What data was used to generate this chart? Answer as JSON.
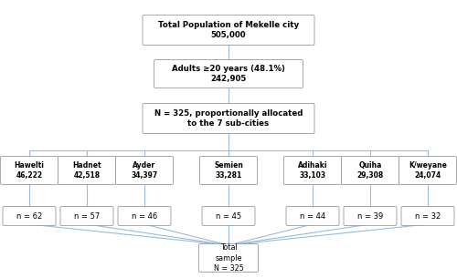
{
  "title_box": "Total Population of Mekelle city\n505,000",
  "adults_box": "Adults ≥20 years (48.1%)\n242,905",
  "allocation_box": "N = 325, proportionally allocated\nto the 7 sub-cities",
  "sub_cities": [
    "Hawelti\n46,222",
    "Hadnet\n42,518",
    "Ayder\n34,397",
    "Semien\n33,281",
    "Adihaki\n33,103",
    "Quiha\n29,308",
    "K/weyane\n24,074"
  ],
  "samples": [
    "n = 62",
    "n = 57",
    "n = 46",
    "n = 45",
    "n = 44",
    "n = 39",
    "n = 32"
  ],
  "total_box": "Total\nsample\nN = 325",
  "box_color": "#ffffff",
  "border_color": "#999999",
  "line_color": "#99bbdd",
  "text_color": "#000000",
  "bg_color": "#ffffff",
  "fig_w": 5.0,
  "fig_h": 3.05,
  "dpi": 100
}
